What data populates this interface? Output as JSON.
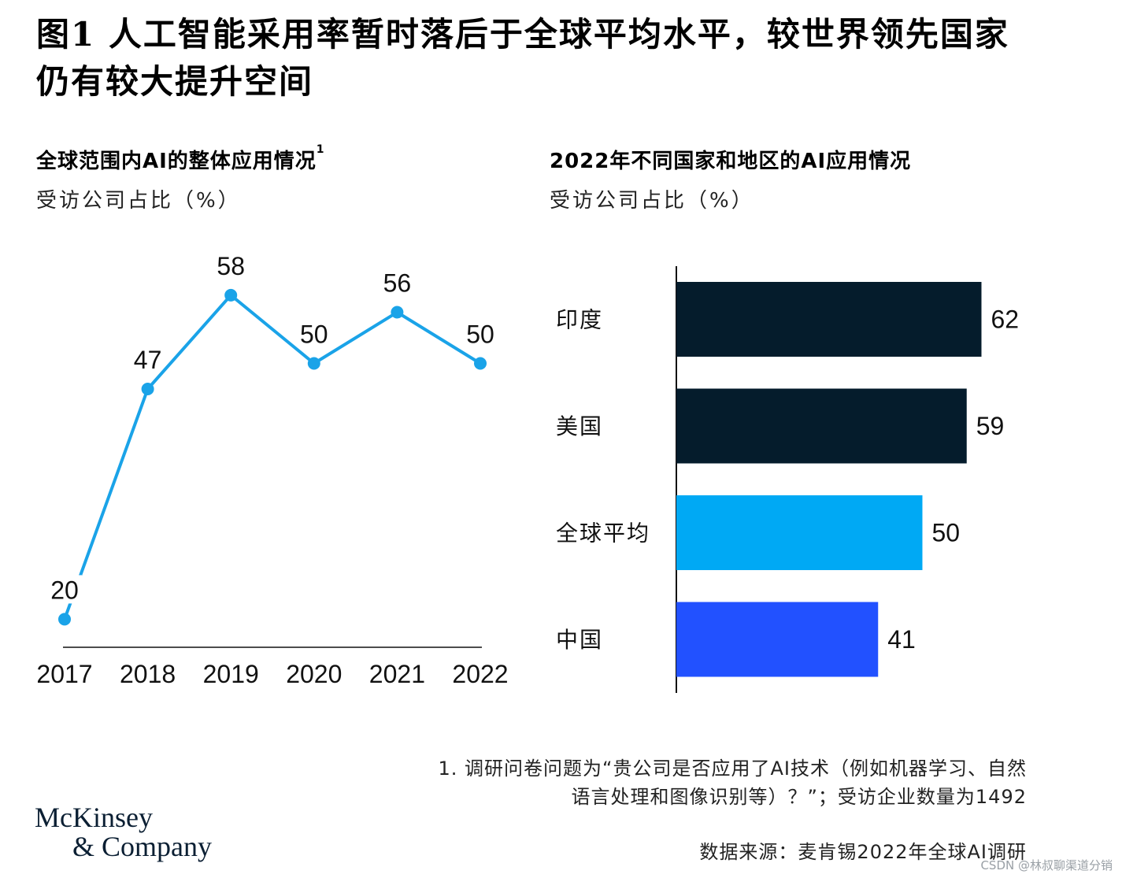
{
  "title": "图1 人工智能采用率暂时落后于全球平均水平，较世界领先国家仍有较大提升空间",
  "left_panel": {
    "title": "全球范围内AI的整体应用情况",
    "title_sup": "1",
    "unit": "受访公司占比（%）"
  },
  "right_panel": {
    "title": "2022年不同国家和地区的AI应用情况",
    "unit": "受访公司占比（%）"
  },
  "chart_data": [
    {
      "type": "line",
      "title": "全球范围内AI的整体应用情况",
      "ylabel": "受访公司占比（%）",
      "x": [
        "2017",
        "2018",
        "2019",
        "2020",
        "2021",
        "2022"
      ],
      "values": [
        20,
        47,
        58,
        50,
        56,
        50
      ],
      "ylim": [
        0,
        70
      ],
      "grid": false,
      "color": "#1aa3e8"
    },
    {
      "type": "bar",
      "orientation": "horizontal",
      "title": "2022年不同国家和地区的AI应用情况",
      "ylabel": "受访公司占比（%）",
      "categories": [
        "印度",
        "美国",
        "全球平均",
        "中国"
      ],
      "values": [
        62,
        59,
        50,
        41
      ],
      "colors": [
        "#051c2c",
        "#051c2c",
        "#00a9f4",
        "#2251ff"
      ],
      "xlim": [
        0,
        70
      ],
      "grid": false
    }
  ],
  "footnote": {
    "line1": "1. 调研问卷问题为“贵公司是否应用了AI技术（例如机器学习、自然",
    "line2": "语言处理和图像识别等）？”；受访企业数量为1492"
  },
  "source": "数据来源：麦肯锡2022年全球AI调研",
  "logo": {
    "line1": "McKinsey",
    "line2": "& Company"
  },
  "watermark": "CSDN @林叔聊渠道分销"
}
